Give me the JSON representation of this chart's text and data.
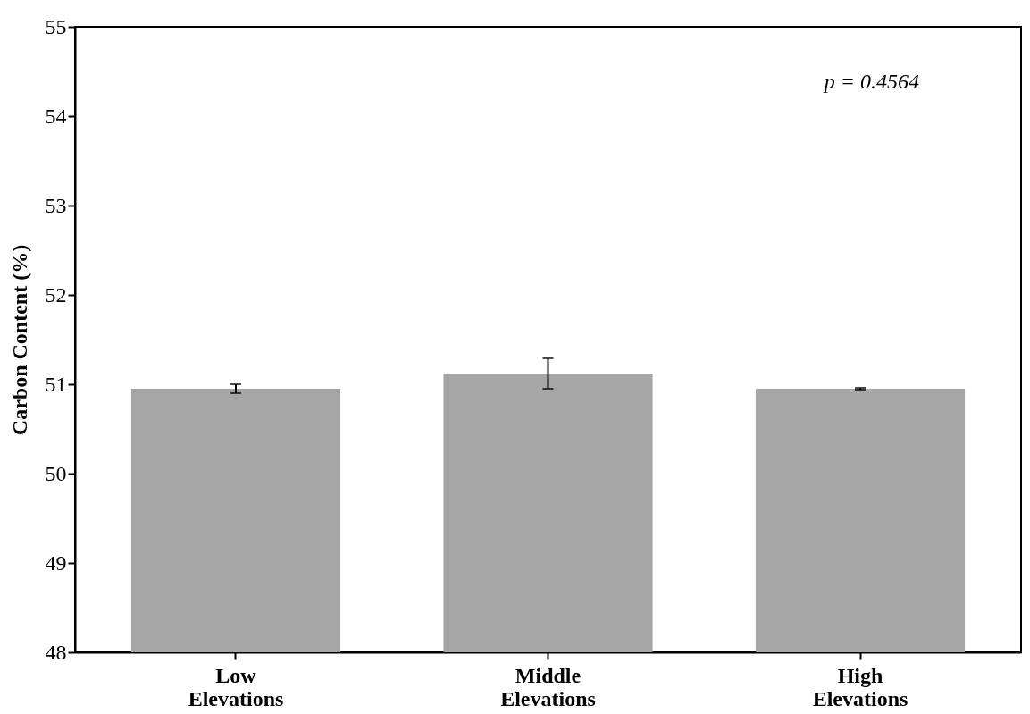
{
  "chart_data": {
    "type": "bar",
    "ylabel": "Carbon Content (%)",
    "categories": [
      "Low\nElevations",
      "Middle\nElevations",
      "High\nElevations"
    ],
    "values": [
      50.95,
      51.12,
      50.95
    ],
    "errors": [
      0.05,
      0.17,
      0.01
    ],
    "color": "#a6a6a6",
    "ylim": [
      48,
      55
    ],
    "yticks": [
      48,
      49,
      50,
      51,
      52,
      53,
      54,
      55
    ],
    "grid": false,
    "annotations": [
      "p = 0.4564"
    ]
  }
}
